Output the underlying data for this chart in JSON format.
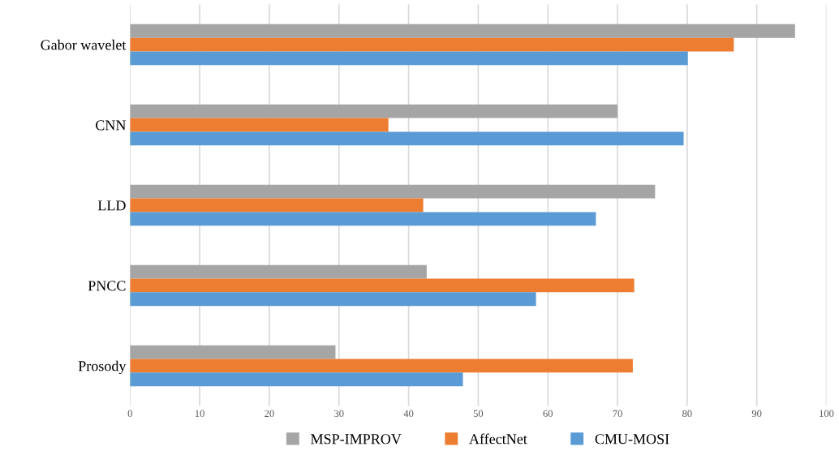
{
  "chart_data": {
    "type": "bar",
    "orientation": "horizontal",
    "categories": [
      "Gabor wavelet",
      "CNN",
      "LLD",
      "PNCC",
      "Prosody"
    ],
    "series": [
      {
        "name": "MSP-IMPROV",
        "color": "#a5a5a5",
        "values": [
          95.5,
          70.0,
          75.4,
          42.6,
          29.5
        ]
      },
      {
        "name": "AffectNet",
        "color": "#ed7d31",
        "values": [
          86.7,
          37.1,
          42.1,
          72.4,
          72.2
        ]
      },
      {
        "name": "CMU-MOSI",
        "color": "#5b9bd5",
        "values": [
          80.1,
          79.5,
          66.9,
          58.3,
          47.8
        ]
      }
    ],
    "xlim": [
      0,
      100
    ],
    "xticks": [
      0,
      10,
      20,
      30,
      40,
      50,
      60,
      70,
      80,
      90,
      100
    ],
    "grid": "x",
    "legend": "bottom"
  }
}
